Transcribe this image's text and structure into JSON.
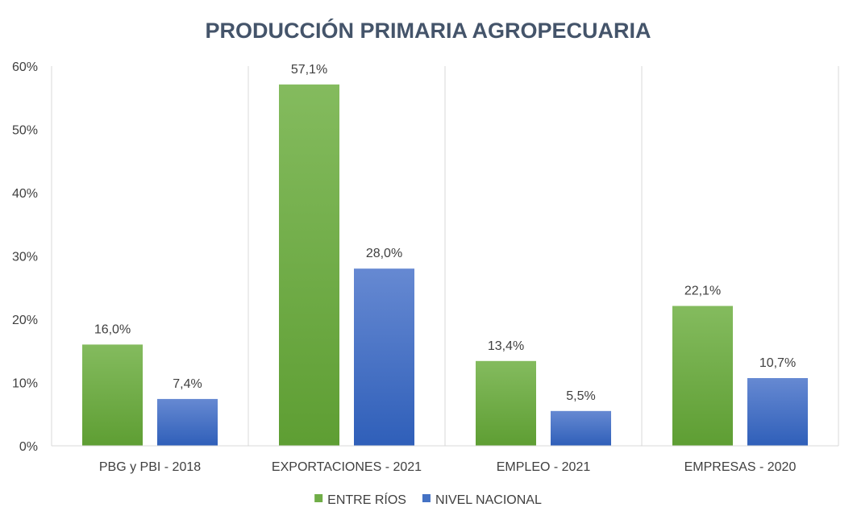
{
  "chart_data": {
    "type": "bar",
    "title": "PRODUCCIÓN PRIMARIA AGROPECUARIA",
    "categories": [
      "PBG y PBI - 2018",
      "EXPORTACIONES - 2021",
      "EMPLEO - 2021",
      "EMPRESAS - 2020"
    ],
    "series": [
      {
        "name": "ENTRE RÍOS",
        "values": [
          16.0,
          57.1,
          13.4,
          22.1
        ],
        "labels": [
          "16,0%",
          "57,1%",
          "13,4%",
          "22,1%"
        ],
        "color": "#70ad47"
      },
      {
        "name": "NIVEL NACIONAL",
        "values": [
          7.4,
          28.0,
          5.5,
          10.7
        ],
        "labels": [
          "7,4%",
          "28,0%",
          "5,5%",
          "10,7%"
        ],
        "color": "#4472c4"
      }
    ],
    "yticks": [
      "0%",
      "10%",
      "20%",
      "30%",
      "40%",
      "50%",
      "60%"
    ],
    "ylim": [
      0,
      60
    ],
    "grid": "vertical category separators",
    "legend": "bottom-center"
  }
}
